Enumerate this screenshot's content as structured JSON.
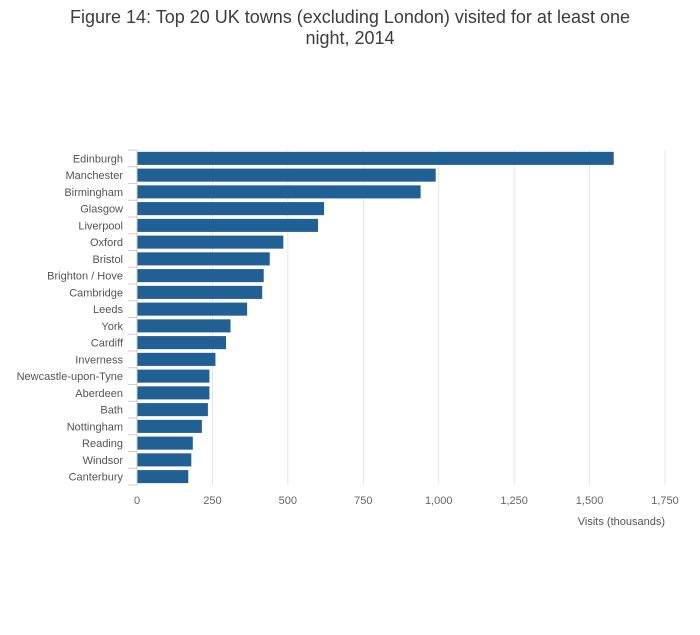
{
  "chart_data": {
    "type": "bar",
    "orientation": "horizontal",
    "title_line1": "Figure 14: Top 20 UK towns (excluding London) visited for at least one",
    "title_line2": "night, 2014",
    "xlabel": "Visits (thousands)",
    "ylabel": "",
    "xlim": [
      0,
      1750
    ],
    "xticks": [
      0,
      250,
      500,
      750,
      1000,
      1250,
      1500,
      1750
    ],
    "xtick_labels": [
      "0",
      "250",
      "500",
      "750",
      "1,000",
      "1,250",
      "1,500",
      "1,750"
    ],
    "grid": "vertical",
    "bar_color": "#206095",
    "categories": [
      "Edinburgh",
      "Manchester",
      "Birmingham",
      "Glasgow",
      "Liverpool",
      "Oxford",
      "Bristol",
      "Brighton / Hove",
      "Cambridge",
      "Leeds",
      "York",
      "Cardiff",
      "Inverness",
      "Newcastle-upon-Tyne",
      "Aberdeen",
      "Bath",
      "Nottingham",
      "Reading",
      "Windsor",
      "Canterbury"
    ],
    "values": [
      1580,
      990,
      940,
      620,
      600,
      485,
      440,
      420,
      415,
      365,
      310,
      295,
      260,
      240,
      240,
      235,
      215,
      185,
      180,
      170
    ]
  }
}
